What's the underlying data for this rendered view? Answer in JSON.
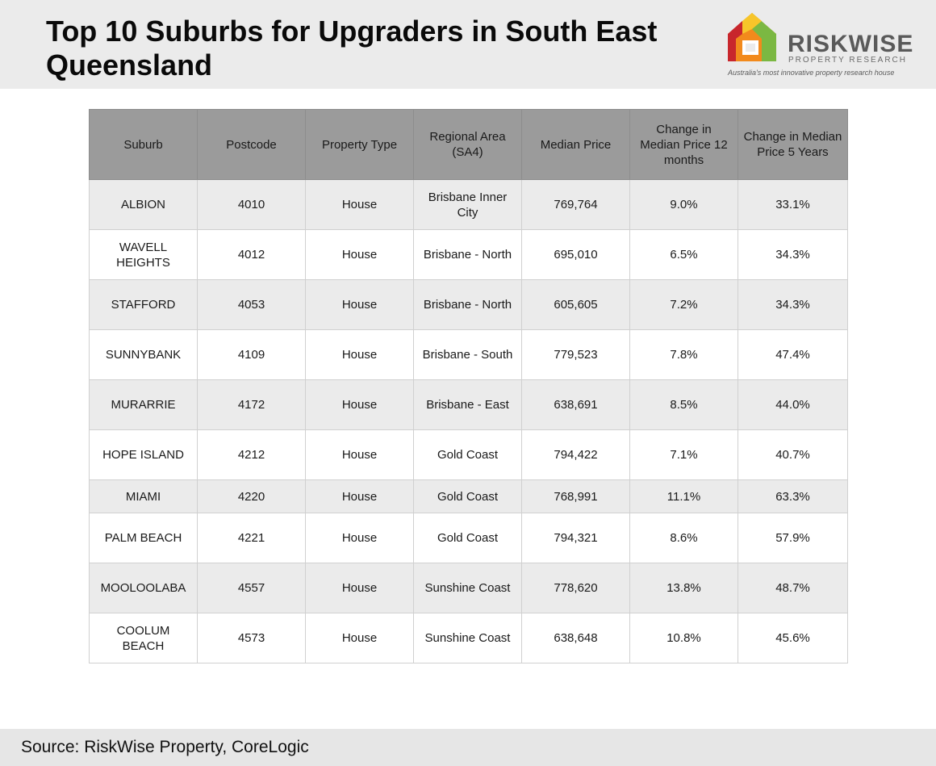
{
  "header": {
    "title": "Top 10 Suburbs for Upgraders in South East Queensland"
  },
  "logo": {
    "name": "RISKWISE",
    "subtitle": "PROPERTY RESEARCH",
    "tagline": "Australia's most innovative property research house",
    "icon": "house-logo-icon",
    "colors": [
      "#c8262c",
      "#f28a1c",
      "#f7c52a",
      "#7bb842"
    ]
  },
  "chart_data": {
    "type": "table",
    "columns": [
      "Suburb",
      "Postcode",
      "Property Type",
      "Regional Area (SA4)",
      "Median Price",
      "Change in Median Price 12 months",
      "Change in Median Price 5 Years"
    ],
    "rows": [
      [
        "ALBION",
        "4010",
        "House",
        "Brisbane Inner City",
        "769,764",
        "9.0%",
        "33.1%"
      ],
      [
        "WAVELL HEIGHTS",
        "4012",
        "House",
        "Brisbane - North",
        "695,010",
        "6.5%",
        "34.3%"
      ],
      [
        "STAFFORD",
        "4053",
        "House",
        "Brisbane - North",
        "605,605",
        "7.2%",
        "34.3%"
      ],
      [
        "SUNNYBANK",
        "4109",
        "House",
        "Brisbane - South",
        "779,523",
        "7.8%",
        "47.4%"
      ],
      [
        "MURARRIE",
        "4172",
        "House",
        "Brisbane - East",
        "638,691",
        "8.5%",
        "44.0%"
      ],
      [
        "HOPE ISLAND",
        "4212",
        "House",
        "Gold Coast",
        "794,422",
        "7.1%",
        "40.7%"
      ],
      [
        "MIAMI",
        "4220",
        "House",
        "Gold Coast",
        "768,991",
        "11.1%",
        "63.3%"
      ],
      [
        "PALM BEACH",
        "4221",
        "House",
        "Gold Coast",
        "794,321",
        "8.6%",
        "57.9%"
      ],
      [
        "MOOLOOLABA",
        "4557",
        "House",
        "Sunshine Coast",
        "778,620",
        "13.8%",
        "48.7%"
      ],
      [
        "COOLUM BEACH",
        "4573",
        "House",
        "Sunshine Coast",
        "638,648",
        "10.8%",
        "45.6%"
      ]
    ]
  },
  "footer": {
    "source": "Source: RiskWise Property, CoreLogic"
  }
}
